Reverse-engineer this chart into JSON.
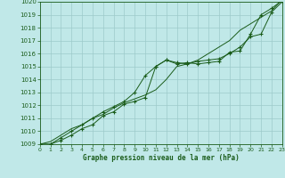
{
  "title": "Graphe pression niveau de la mer (hPa)",
  "xlabel_hours": [
    0,
    1,
    2,
    3,
    4,
    5,
    6,
    7,
    8,
    9,
    10,
    11,
    12,
    13,
    14,
    15,
    16,
    17,
    18,
    19,
    20,
    21,
    22,
    23
  ],
  "ylim": [
    1009,
    1020
  ],
  "xlim": [
    0,
    23
  ],
  "yticks": [
    1009,
    1010,
    1011,
    1012,
    1013,
    1014,
    1015,
    1016,
    1017,
    1018,
    1019,
    1020
  ],
  "bg_color": "#c0e8e8",
  "grid_color": "#9dcaca",
  "line_color": "#1a5c1a",
  "series1": [
    1009.0,
    1009.0,
    1009.3,
    1009.7,
    1010.2,
    1010.5,
    1011.2,
    1011.5,
    1012.1,
    1012.3,
    1012.6,
    1015.0,
    1015.5,
    1015.2,
    1015.3,
    1015.2,
    1015.3,
    1015.4,
    1016.1,
    1016.2,
    1017.5,
    1019.0,
    1019.5,
    1020.1
  ],
  "series2": [
    1009.0,
    1009.0,
    1009.5,
    1010.0,
    1010.5,
    1011.0,
    1011.5,
    1011.9,
    1012.3,
    1013.0,
    1014.3,
    1015.0,
    1015.5,
    1015.3,
    1015.2,
    1015.4,
    1015.5,
    1015.6,
    1016.0,
    1016.5,
    1017.3,
    1017.5,
    1019.2,
    1020.0
  ],
  "series3": [
    1009.0,
    1009.2,
    1009.7,
    1010.2,
    1010.5,
    1011.0,
    1011.3,
    1011.8,
    1012.2,
    1012.5,
    1012.8,
    1013.2,
    1014.0,
    1015.0,
    1015.2,
    1015.5,
    1016.0,
    1016.5,
    1017.0,
    1017.8,
    1018.3,
    1018.8,
    1019.3,
    1020.2
  ],
  "figsize": [
    3.2,
    2.0
  ],
  "dpi": 100
}
